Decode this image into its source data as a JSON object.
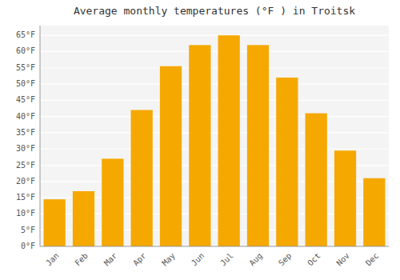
{
  "chart_data": {
    "type": "bar",
    "title": "Average monthly temperatures (°F ) in Troitsk",
    "categories": [
      "Jan",
      "Feb",
      "Mar",
      "Apr",
      "May",
      "Jun",
      "Jul",
      "Aug",
      "Sep",
      "Oct",
      "Nov",
      "Dec"
    ],
    "values": [
      14.5,
      17,
      27,
      42,
      55.5,
      62,
      65,
      62,
      52,
      41,
      29.5,
      21
    ],
    "color": "#F5A800",
    "ylim": [
      0,
      68
    ],
    "yticks": [
      {
        "value": 0,
        "label": "0°F"
      },
      {
        "value": 5,
        "label": "5°F"
      },
      {
        "value": 10,
        "label": "10°F"
      },
      {
        "value": 15,
        "label": "15°F"
      },
      {
        "value": 20,
        "label": "20°F"
      },
      {
        "value": 25,
        "label": "25°F"
      },
      {
        "value": 30,
        "label": "30°F"
      },
      {
        "value": 35,
        "label": "35°F"
      },
      {
        "value": 40,
        "label": "40°F"
      },
      {
        "value": 45,
        "label": "45°F"
      },
      {
        "value": 50,
        "label": "50°F"
      },
      {
        "value": 55,
        "label": "55°F"
      },
      {
        "value": 60,
        "label": "60°F"
      },
      {
        "value": 65,
        "label": "65°F"
      }
    ],
    "grid": true
  }
}
